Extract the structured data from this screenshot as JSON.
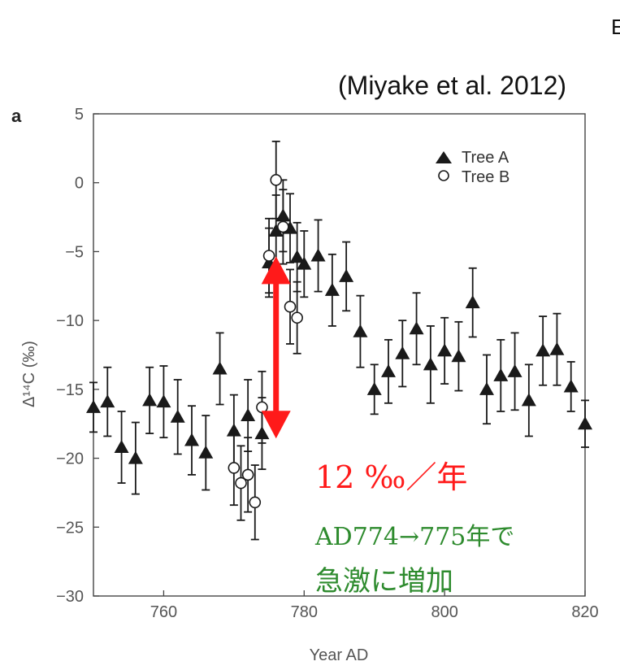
{
  "citation": "(Miyake et al. 2012)",
  "corner_mark": "Е",
  "panel_letter": "a",
  "chart_data": {
    "type": "scatter",
    "xlabel": "Year AD",
    "ylabel": "Δ¹⁴C (‰)",
    "xlim": [
      750,
      820
    ],
    "ylim": [
      -30,
      5
    ],
    "xticks": [
      760,
      780,
      800,
      820
    ],
    "yticks": [
      5,
      0,
      -5,
      -10,
      -15,
      -20,
      -25,
      -30
    ],
    "legend_position": "top-right",
    "series": [
      {
        "name": "Tree A",
        "marker": "filled-triangle",
        "color": "#1a1a1a",
        "points": [
          {
            "x": 750,
            "y": -16.3,
            "err": 1.8
          },
          {
            "x": 752,
            "y": -15.9,
            "err": 2.5
          },
          {
            "x": 754,
            "y": -19.2,
            "err": 2.6
          },
          {
            "x": 756,
            "y": -20.0,
            "err": 2.6
          },
          {
            "x": 758,
            "y": -15.8,
            "err": 2.4
          },
          {
            "x": 760,
            "y": -15.9,
            "err": 2.6
          },
          {
            "x": 762,
            "y": -17.0,
            "err": 2.7
          },
          {
            "x": 764,
            "y": -18.7,
            "err": 2.5
          },
          {
            "x": 766,
            "y": -19.6,
            "err": 2.7
          },
          {
            "x": 768,
            "y": -13.5,
            "err": 2.6
          },
          {
            "x": 770,
            "y": -18.0,
            "err": 2.6
          },
          {
            "x": 772,
            "y": -16.9,
            "err": 2.6
          },
          {
            "x": 774,
            "y": -18.2,
            "err": 2.6
          },
          {
            "x": 775,
            "y": -5.8,
            "err": 2.5
          },
          {
            "x": 776,
            "y": -3.5,
            "err": 2.6
          },
          {
            "x": 777,
            "y": -2.4,
            "err": 2.6
          },
          {
            "x": 778,
            "y": -3.3,
            "err": 2.5
          },
          {
            "x": 779,
            "y": -5.4,
            "err": 2.5
          },
          {
            "x": 780,
            "y": -5.9,
            "err": 2.4
          },
          {
            "x": 782,
            "y": -5.3,
            "err": 2.6
          },
          {
            "x": 784,
            "y": -7.8,
            "err": 2.6
          },
          {
            "x": 786,
            "y": -6.8,
            "err": 2.5
          },
          {
            "x": 788,
            "y": -10.8,
            "err": 2.6
          },
          {
            "x": 790,
            "y": -15.0,
            "err": 1.8
          },
          {
            "x": 792,
            "y": -13.7,
            "err": 2.3
          },
          {
            "x": 794,
            "y": -12.4,
            "err": 2.4
          },
          {
            "x": 796,
            "y": -10.6,
            "err": 2.6
          },
          {
            "x": 798,
            "y": -13.2,
            "err": 2.8
          },
          {
            "x": 800,
            "y": -12.2,
            "err": 2.4
          },
          {
            "x": 802,
            "y": -12.6,
            "err": 2.5
          },
          {
            "x": 804,
            "y": -8.7,
            "err": 2.5
          },
          {
            "x": 806,
            "y": -15.0,
            "err": 2.5
          },
          {
            "x": 808,
            "y": -14.0,
            "err": 2.6
          },
          {
            "x": 810,
            "y": -13.7,
            "err": 2.8
          },
          {
            "x": 812,
            "y": -15.8,
            "err": 2.6
          },
          {
            "x": 814,
            "y": -12.2,
            "err": 2.5
          },
          {
            "x": 816,
            "y": -12.1,
            "err": 2.6
          },
          {
            "x": 818,
            "y": -14.8,
            "err": 1.8
          },
          {
            "x": 820,
            "y": -17.5,
            "err": 1.7
          }
        ]
      },
      {
        "name": "Tree B",
        "marker": "open-circle",
        "color": "#1a1a1a",
        "points": [
          {
            "x": 770,
            "y": -20.7,
            "err": 2.7
          },
          {
            "x": 771,
            "y": -21.8,
            "err": 2.7
          },
          {
            "x": 772,
            "y": -21.2,
            "err": 2.7
          },
          {
            "x": 773,
            "y": -23.2,
            "err": 2.7
          },
          {
            "x": 774,
            "y": -16.3,
            "err": 2.6
          },
          {
            "x": 775,
            "y": -5.3,
            "err": 2.7
          },
          {
            "x": 776,
            "y": 0.2,
            "err": 2.8
          },
          {
            "x": 777,
            "y": -3.2,
            "err": 2.7
          },
          {
            "x": 778,
            "y": -9.0,
            "err": 2.7
          },
          {
            "x": 779,
            "y": -9.8,
            "err": 2.6
          }
        ]
      }
    ],
    "annotations": {
      "arrow": {
        "x": 776,
        "y_from": -17.5,
        "y_to": -7.0,
        "color": "#ff1a1a"
      },
      "jump_text": "12 ‰／年",
      "line1": "AD774→775年で",
      "line2": "急激に増加"
    }
  }
}
